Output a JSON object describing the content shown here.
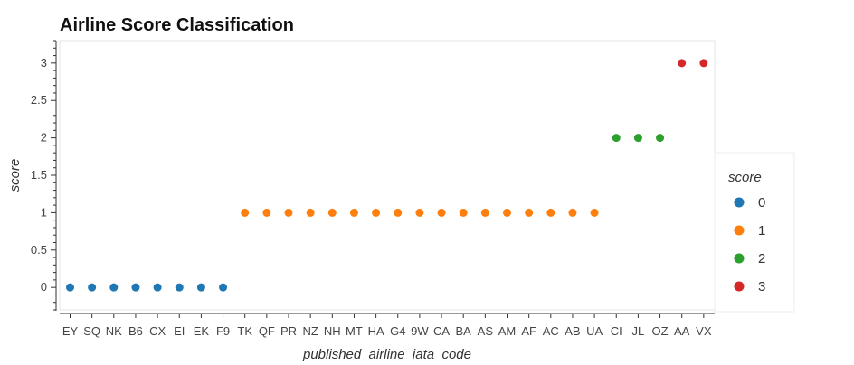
{
  "chart_data": {
    "type": "scatter",
    "title": "Airline Score Classification",
    "xlabel": "published_airline_iata_code",
    "ylabel": "score",
    "categories": [
      "EY",
      "SQ",
      "NK",
      "B6",
      "CX",
      "EI",
      "EK",
      "F9",
      "TK",
      "QF",
      "PR",
      "NZ",
      "NH",
      "MT",
      "HA",
      "G4",
      "9W",
      "CA",
      "BA",
      "AS",
      "AM",
      "AF",
      "AC",
      "AB",
      "UA",
      "CI",
      "JL",
      "OZ",
      "AA",
      "VX"
    ],
    "values": [
      0,
      0,
      0,
      0,
      0,
      0,
      0,
      0,
      1,
      1,
      1,
      1,
      1,
      1,
      1,
      1,
      1,
      1,
      1,
      1,
      1,
      1,
      1,
      1,
      1,
      2,
      2,
      2,
      3,
      3
    ],
    "ylim": [
      -0.3,
      3.3
    ],
    "yticks": [
      "0",
      "0.5",
      "1",
      "1.5",
      "2",
      "2.5",
      "3"
    ],
    "grid": false,
    "legend": {
      "title": "score",
      "placement": "right",
      "entries": [
        {
          "label": "0",
          "color": "#1f77b4"
        },
        {
          "label": "1",
          "color": "#ff7f0e"
        },
        {
          "label": "2",
          "color": "#2ca02c"
        },
        {
          "label": "3",
          "color": "#d62728"
        }
      ]
    }
  }
}
